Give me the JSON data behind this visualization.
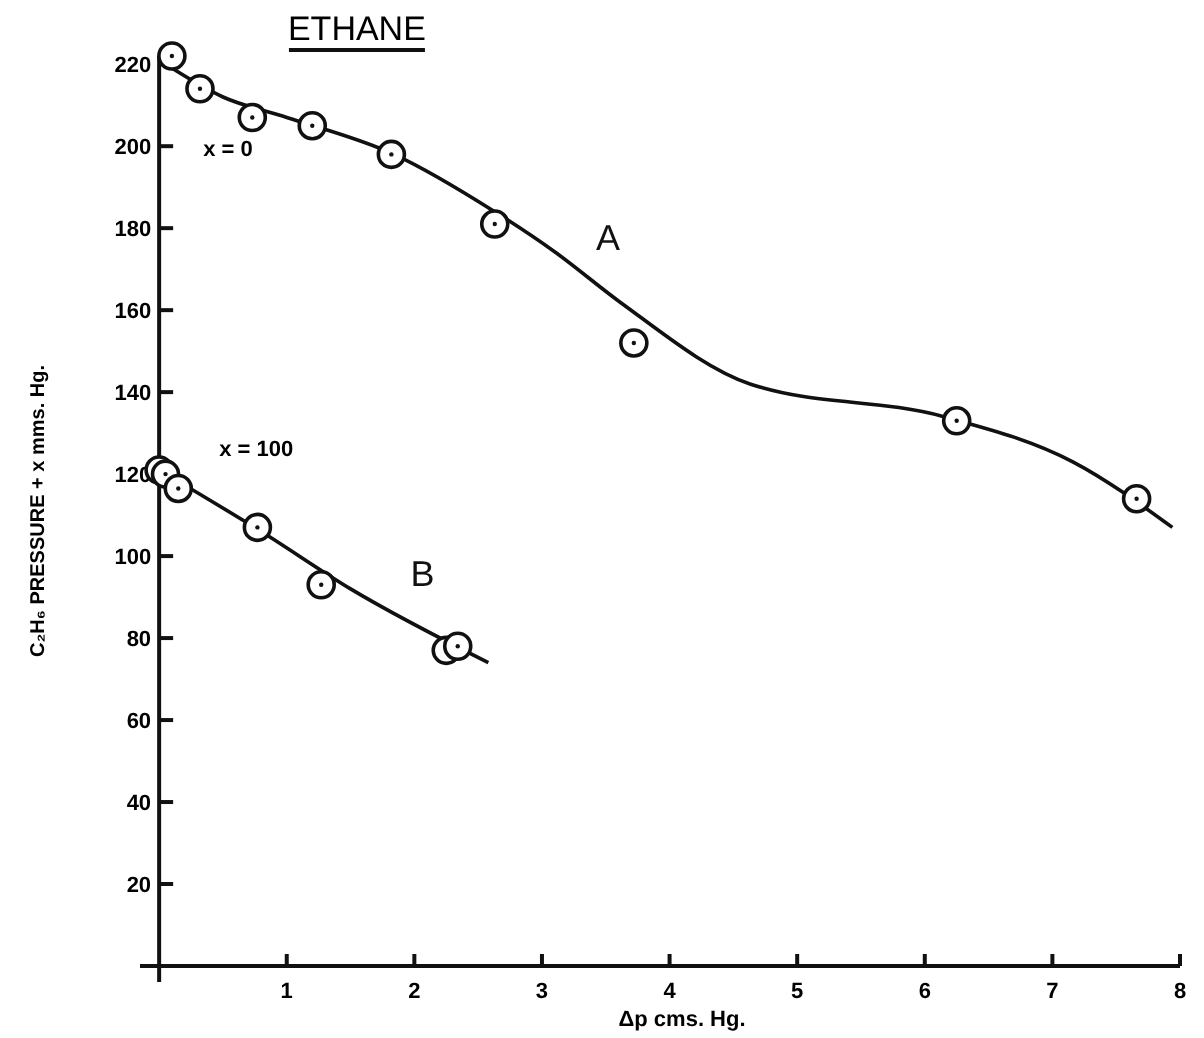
{
  "chart_data": {
    "type": "scatter",
    "title": "ETHANE",
    "xlabel": "Δp  cms. Hg.",
    "ylabel": "C₂H₆ PRESSURE + x mms. Hg.",
    "xlim": [
      -0.15,
      8
    ],
    "ylim": [
      0,
      222
    ],
    "xticks": [
      1,
      2,
      3,
      4,
      5,
      6,
      7,
      8
    ],
    "yticks": [
      20,
      40,
      60,
      80,
      100,
      120,
      140,
      160,
      180,
      200,
      220
    ],
    "grid": false,
    "marker": "circle",
    "line_style": "solid",
    "series": [
      {
        "color": "#111111",
        "x": [
          0.1,
          0.32,
          0.73,
          1.2,
          1.82,
          2.63,
          3.72,
          6.25,
          7.66
        ],
        "values": [
          222,
          214,
          207,
          205,
          198,
          181,
          152,
          133,
          114
        ]
      },
      {
        "type": "line",
        "name": "A",
        "marker": "none",
        "color": "#111111",
        "x": [
          0,
          0.5,
          1.0,
          1.84,
          2.63,
          3.11,
          3.61,
          4.63,
          6.15,
          7.16,
          7.94
        ],
        "values": [
          221,
          212,
          207,
          198,
          184,
          174,
          162,
          142,
          134,
          123,
          107
        ]
      },
      {
        "color": "#111111",
        "x": [
          0,
          0.05,
          0.15,
          0.77,
          1.27,
          2.25,
          2.34
        ],
        "values": [
          121,
          120,
          116.5,
          107,
          93,
          77,
          78
        ]
      },
      {
        "type": "line",
        "name": "B",
        "marker": "none",
        "color": "#111111",
        "x": [
          0,
          0.8,
          1.5,
          2.58
        ],
        "values": [
          121,
          106,
          92,
          74
        ]
      }
    ],
    "annotations": [
      "x = 0",
      "x = 100"
    ]
  }
}
